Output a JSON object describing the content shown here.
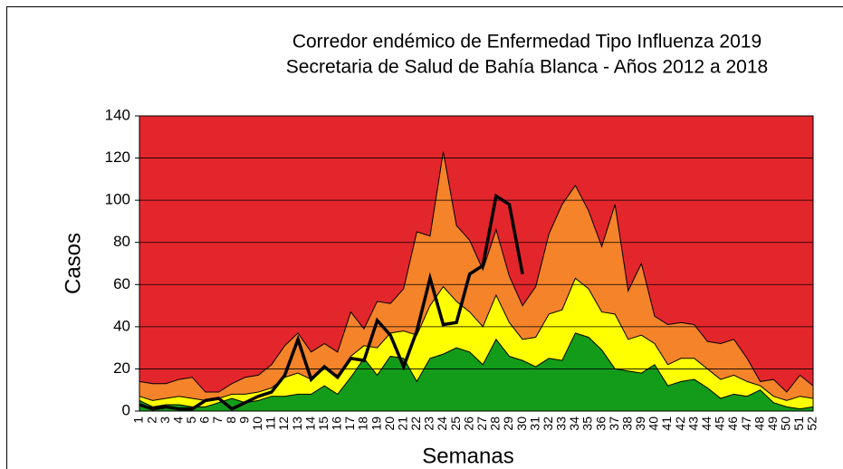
{
  "chart_data": {
    "type": "area",
    "title": "Corredor endémico de Enfermedad Tipo Influenza 2019",
    "subtitle": "Secretaria de Salud de Bahía Blanca - Años 2012 a 2018",
    "x_label": "Semanas",
    "y_label": "Casos",
    "background_color": "#e3262b",
    "grid": true,
    "categories": [
      "1",
      "2",
      "3",
      "4",
      "5",
      "6",
      "7",
      "8",
      "9",
      "10",
      "11",
      "12",
      "13",
      "14",
      "15",
      "16",
      "17",
      "18",
      "19",
      "20",
      "21",
      "22",
      "23",
      "24",
      "25",
      "26",
      "27",
      "28",
      "29",
      "30",
      "31",
      "32",
      "33",
      "34",
      "35",
      "36",
      "37",
      "38",
      "39",
      "40",
      "41",
      "42",
      "43",
      "44",
      "45",
      "46",
      "47",
      "48",
      "49",
      "50",
      "51",
      "52"
    ],
    "ylim": [
      0,
      140
    ],
    "yticks": [
      0,
      20,
      40,
      60,
      80,
      100,
      120,
      140
    ],
    "series": [
      {
        "color": "#f5832a",
        "kind": "area",
        "values": [
          14,
          13,
          13,
          15,
          16,
          9,
          9,
          13,
          16,
          17,
          22,
          31,
          37,
          28,
          32,
          28,
          47,
          39,
          52,
          51,
          58,
          85,
          83,
          123,
          88,
          81,
          67,
          86,
          64,
          50,
          59,
          84,
          98,
          107,
          95,
          78,
          98,
          57,
          70,
          45,
          41,
          42,
          41,
          33,
          32,
          34,
          25,
          14,
          15,
          9,
          17,
          12
        ]
      },
      {
        "color": "#ffff00",
        "kind": "area",
        "values": [
          7,
          5,
          6,
          7,
          6,
          5,
          6,
          8,
          8,
          9,
          11,
          16,
          18,
          15,
          20,
          17,
          26,
          31,
          30,
          37,
          38,
          36,
          50,
          59,
          52,
          47,
          40,
          55,
          42,
          34,
          35,
          46,
          48,
          63,
          58,
          47,
          46,
          34,
          36,
          32,
          22,
          25,
          25,
          20,
          15,
          17,
          14,
          12,
          7,
          5,
          7,
          6
        ]
      },
      {
        "color": "#139c1a",
        "kind": "area",
        "values": [
          5,
          2,
          3,
          3,
          2,
          2,
          4,
          6,
          4,
          5,
          7,
          7,
          8,
          8,
          12,
          8,
          16,
          25,
          17,
          26,
          25,
          14,
          25,
          27,
          30,
          28,
          22,
          34,
          26,
          24,
          21,
          25,
          24,
          37,
          35,
          29,
          20,
          19,
          18,
          22,
          12,
          14,
          15,
          11,
          6,
          8,
          7,
          10,
          4,
          2,
          1,
          2
        ]
      },
      {
        "color": "#000000",
        "kind": "line",
        "values": [
          3,
          1,
          2,
          1,
          1,
          5,
          6,
          1,
          4,
          7,
          9,
          17,
          34,
          15,
          21,
          16,
          25,
          24,
          43,
          36,
          21,
          38,
          63,
          41,
          42,
          65,
          69,
          102,
          98,
          65,
          null,
          null,
          null,
          null,
          null,
          null,
          null,
          null,
          null,
          null,
          null,
          null,
          null,
          null,
          null,
          null,
          null,
          null,
          null,
          null,
          null,
          null
        ]
      }
    ]
  }
}
